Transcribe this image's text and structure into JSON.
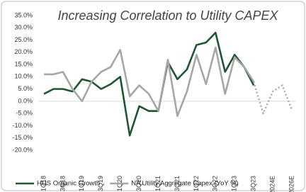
{
  "chart_data": {
    "type": "line",
    "title": "Increasing Correlation to Utility CAPEX",
    "categories": [
      "1Q18",
      null,
      "3Q18",
      null,
      "1Q19",
      null,
      "3Q19",
      null,
      "1Q20",
      null,
      "3Q20",
      null,
      "1Q21",
      null,
      "3Q21",
      null,
      "1Q22",
      null,
      "3Q22",
      null,
      "1Q23",
      null,
      "3Q23",
      null,
      "2024E",
      null,
      "2026E"
    ],
    "series": [
      {
        "name": "HUS Organic Growth",
        "color": "#1e5631",
        "values": [
          3,
          5,
          5,
          4,
          9,
          8,
          5,
          7,
          10,
          -14,
          -2,
          -4,
          -4,
          16,
          9,
          13,
          23,
          24,
          28,
          12,
          19,
          14,
          6.5,
          null,
          null,
          null,
          null
        ]
      },
      {
        "name": "NA Utility Aggregate Capex (YoY %)",
        "color": "#a6a6a6",
        "dashed_from": 22,
        "values": [
          11,
          11,
          12,
          5,
          0,
          8,
          12,
          14,
          21,
          2,
          6.5,
          3,
          -4,
          17,
          -6,
          4,
          19,
          7,
          22,
          3,
          18,
          14,
          8,
          -5,
          4,
          6.5,
          -3.5
        ]
      }
    ],
    "ylim": [
      -20,
      35
    ],
    "yticks": [
      {
        "value": -20,
        "label": "-20.0%"
      },
      {
        "value": -15,
        "label": "-15.0%"
      },
      {
        "value": -10,
        "label": "-10.0%"
      },
      {
        "value": -5,
        "label": "-5.0%"
      },
      {
        "value": 0,
        "label": "0.0%"
      },
      {
        "value": 5,
        "label": "5.0%"
      },
      {
        "value": 10,
        "label": "10.0%"
      },
      {
        "value": 15,
        "label": "15.0%"
      },
      {
        "value": 20,
        "label": "20.0%"
      },
      {
        "value": 25,
        "label": "25.0%"
      },
      {
        "value": 30,
        "label": "30.0%"
      },
      {
        "value": 35,
        "label": "35.0%"
      }
    ]
  }
}
